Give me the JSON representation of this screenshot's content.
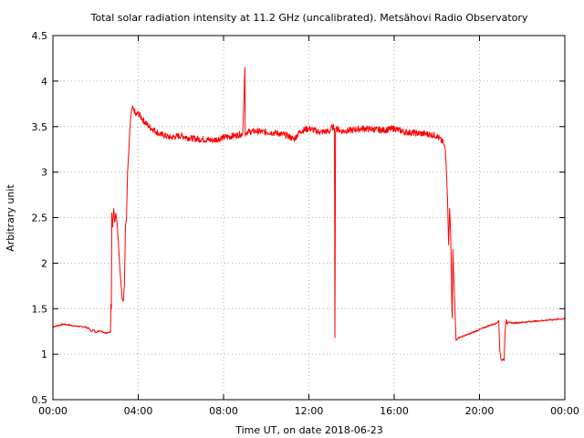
{
  "chart_data": {
    "type": "line",
    "title": "Total solar radiation intensity at 11.2 GHz (uncalibrated). Metsähovi Radio Observatory",
    "xlabel": "Time UT, on date 2018-06-23",
    "ylabel": "Arbitrary unit",
    "xlim": [
      "00:00",
      "24:00"
    ],
    "ylim": [
      0.5,
      4.5
    ],
    "x_ticks": [
      "00:00",
      "04:00",
      "08:00",
      "12:00",
      "16:00",
      "20:00",
      "00:00"
    ],
    "y_ticks": [
      "0.5",
      "1",
      "1.5",
      "2",
      "2.5",
      "3",
      "3.5",
      "4",
      "4.5"
    ],
    "grid": true,
    "series": [
      {
        "color": "#ff0000",
        "x_unit": "hours UT",
        "x": [
          0.0,
          0.5,
          1.0,
          1.5,
          1.7,
          1.8,
          1.9,
          2.0,
          2.2,
          2.4,
          2.55,
          2.7,
          2.72,
          2.74,
          2.76,
          2.8,
          2.85,
          2.9,
          2.95,
          3.0,
          3.05,
          3.1,
          3.15,
          3.2,
          3.25,
          3.3,
          3.35,
          3.4,
          3.45,
          3.5,
          3.55,
          3.6,
          3.65,
          3.7,
          3.8,
          3.9,
          4.0,
          4.2,
          4.5,
          5.0,
          5.5,
          6.0,
          6.5,
          7.0,
          7.5,
          8.0,
          8.5,
          8.9,
          9.0,
          9.01,
          9.05,
          9.08,
          9.1,
          9.5,
          10.0,
          10.5,
          11.0,
          11.3,
          11.6,
          12.0,
          12.5,
          13.0,
          13.1,
          13.2,
          13.22,
          13.25,
          13.28,
          13.3,
          13.5,
          14.0,
          14.5,
          15.0,
          15.5,
          16.0,
          16.5,
          17.0,
          17.5,
          18.0,
          18.3,
          18.4,
          18.45,
          18.5,
          18.55,
          18.6,
          18.65,
          18.7,
          18.72,
          18.75,
          18.8,
          18.85,
          18.9,
          19.0,
          19.5,
          20.0,
          20.5,
          20.8,
          20.9,
          20.95,
          21.0,
          21.05,
          21.1,
          21.15,
          21.2,
          21.25,
          21.3,
          21.35,
          21.4,
          21.5,
          22.0,
          22.5,
          23.0,
          23.5,
          24.0
        ],
        "y": [
          1.3,
          1.33,
          1.31,
          1.3,
          1.28,
          1.25,
          1.27,
          1.24,
          1.26,
          1.24,
          1.23,
          1.25,
          1.55,
          1.5,
          2.55,
          2.4,
          2.6,
          2.45,
          2.55,
          2.45,
          2.3,
          2.1,
          1.9,
          1.75,
          1.6,
          1.58,
          1.75,
          2.4,
          2.5,
          3.0,
          3.2,
          3.45,
          3.6,
          3.7,
          3.68,
          3.62,
          3.65,
          3.58,
          3.5,
          3.42,
          3.38,
          3.4,
          3.37,
          3.36,
          3.35,
          3.38,
          3.4,
          3.42,
          4.15,
          3.42,
          3.43,
          3.42,
          3.44,
          3.45,
          3.44,
          3.43,
          3.4,
          3.36,
          3.45,
          3.48,
          3.44,
          3.45,
          3.5,
          3.48,
          1.18,
          3.45,
          3.5,
          3.48,
          3.45,
          3.46,
          3.48,
          3.47,
          3.46,
          3.48,
          3.44,
          3.43,
          3.42,
          3.4,
          3.32,
          3.25,
          3.0,
          2.7,
          2.2,
          2.6,
          2.3,
          1.6,
          1.4,
          2.15,
          1.8,
          1.5,
          1.15,
          1.18,
          1.22,
          1.27,
          1.32,
          1.34,
          1.37,
          1.05,
          0.95,
          0.93,
          0.95,
          0.93,
          1.25,
          1.38,
          1.33,
          1.36,
          1.35,
          1.34,
          1.35,
          1.36,
          1.37,
          1.38,
          1.39
        ]
      }
    ]
  }
}
